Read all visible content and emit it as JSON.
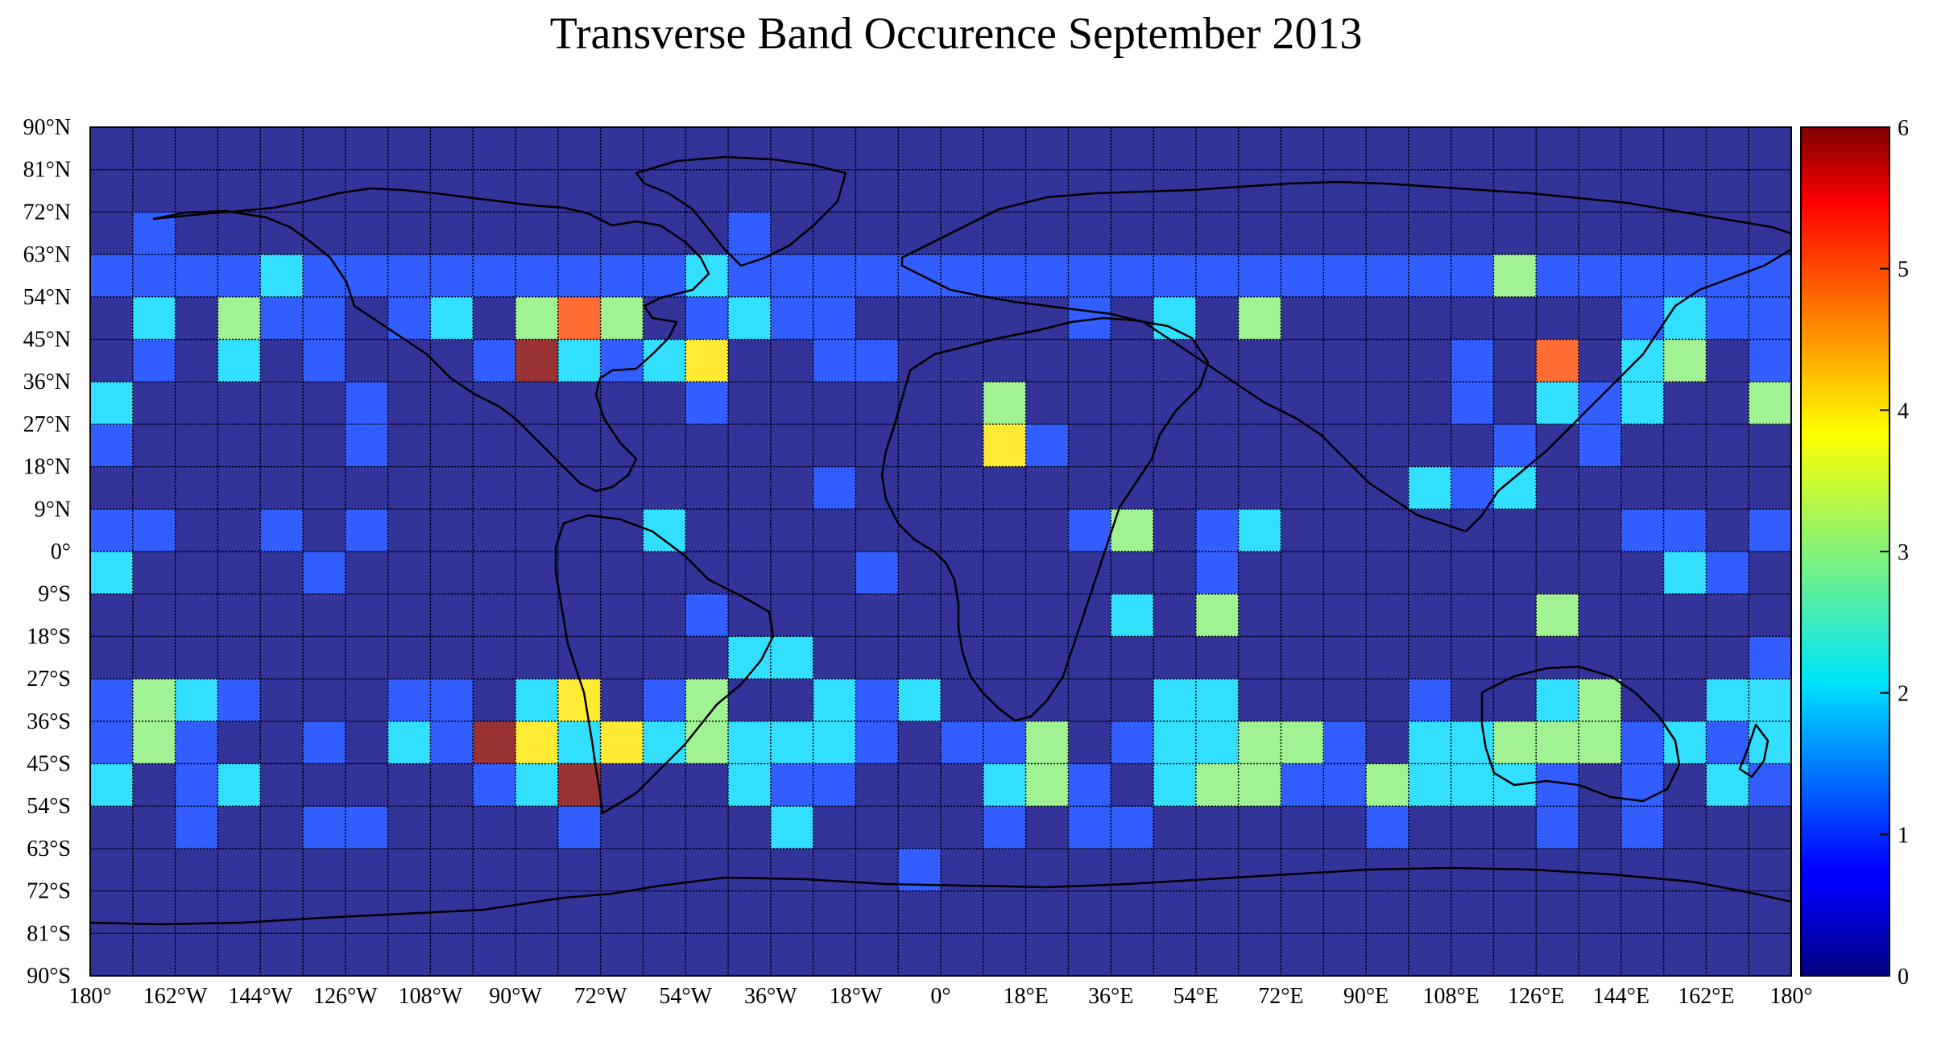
{
  "chart_data": {
    "type": "heatmap",
    "title": "Transverse Band Occurence September 2013",
    "xlabel": "",
    "ylabel": "",
    "x_tick_labels": [
      "180°",
      "162°W",
      "144°W",
      "126°W",
      "108°W",
      "90°W",
      "72°W",
      "54°W",
      "36°W",
      "18°W",
      "0°",
      "18°E",
      "36°E",
      "54°E",
      "72°E",
      "90°E",
      "108°E",
      "126°E",
      "144°E",
      "162°E",
      "180°"
    ],
    "y_tick_labels": [
      "90°N",
      "81°N",
      "72°N",
      "63°N",
      "54°N",
      "45°N",
      "36°N",
      "27°N",
      "18°N",
      "9°N",
      "0°",
      "9°S",
      "18°S",
      "27°S",
      "36°S",
      "45°S",
      "54°S",
      "63°S",
      "72°S",
      "81°S",
      "90°S"
    ],
    "xlim": [
      -180,
      180
    ],
    "ylim": [
      -90,
      90
    ],
    "cell_size_deg": [
      9,
      9
    ],
    "colorbar": {
      "min": 0,
      "max": 6,
      "ticks": [
        "0",
        "1",
        "2",
        "3",
        "4",
        "5",
        "6"
      ],
      "colormap": "jet"
    },
    "grid": true,
    "background_feature": "world coastlines",
    "rows_north_to_south": [
      [
        0,
        0,
        0,
        0,
        0,
        0,
        0,
        0,
        0,
        0,
        0,
        0,
        0,
        0,
        0,
        0,
        0,
        0,
        0,
        0,
        0,
        0,
        0,
        0,
        0,
        0,
        0,
        0,
        0,
        0,
        0,
        0,
        0,
        0,
        0,
        0,
        0,
        0,
        0,
        0
      ],
      [
        0,
        0,
        0,
        0,
        0,
        0,
        0,
        0,
        0,
        0,
        0,
        0,
        0,
        0,
        0,
        0,
        0,
        0,
        0,
        0,
        0,
        0,
        0,
        0,
        0,
        0,
        0,
        0,
        0,
        0,
        0,
        0,
        0,
        0,
        0,
        0,
        0,
        0,
        0,
        0
      ],
      [
        0,
        1,
        0,
        0,
        0,
        0,
        0,
        0,
        0,
        0,
        0,
        0,
        0,
        0,
        0,
        1,
        0,
        0,
        0,
        0,
        0,
        0,
        0,
        0,
        0,
        0,
        0,
        0,
        0,
        0,
        0,
        0,
        0,
        0,
        0,
        0,
        0,
        0,
        0,
        0
      ],
      [
        1,
        1,
        1,
        1,
        2,
        1,
        1,
        1,
        1,
        1,
        1,
        1,
        1,
        1,
        2,
        1,
        1,
        1,
        1,
        1,
        1,
        1,
        1,
        1,
        1,
        1,
        1,
        1,
        1,
        1,
        1,
        1,
        1,
        3,
        1,
        1,
        1,
        1,
        1,
        1
      ],
      [
        0,
        2,
        0,
        3,
        1,
        1,
        0,
        1,
        2,
        0,
        3,
        5,
        3,
        0,
        1,
        2,
        1,
        1,
        0,
        0,
        0,
        0,
        0,
        1,
        0,
        2,
        0,
        3,
        0,
        0,
        0,
        0,
        0,
        0,
        0,
        0,
        1,
        2,
        1,
        1
      ],
      [
        0,
        1,
        0,
        2,
        0,
        1,
        0,
        0,
        0,
        1,
        6,
        2,
        1,
        2,
        4,
        0,
        0,
        1,
        1,
        0,
        0,
        0,
        0,
        0,
        0,
        0,
        0,
        0,
        0,
        0,
        0,
        0,
        1,
        0,
        5,
        0,
        2,
        3,
        0,
        1
      ],
      [
        2,
        0,
        0,
        0,
        0,
        0,
        1,
        0,
        0,
        0,
        0,
        0,
        0,
        0,
        1,
        0,
        0,
        0,
        0,
        0,
        0,
        3,
        0,
        0,
        0,
        0,
        0,
        0,
        0,
        0,
        0,
        0,
        1,
        0,
        2,
        1,
        2,
        0,
        0,
        3
      ],
      [
        1,
        0,
        0,
        0,
        0,
        0,
        1,
        0,
        0,
        0,
        0,
        0,
        0,
        0,
        0,
        0,
        0,
        0,
        0,
        0,
        0,
        4,
        1,
        0,
        0,
        0,
        0,
        0,
        0,
        0,
        0,
        0,
        0,
        1,
        0,
        1,
        0,
        0,
        0,
        0
      ],
      [
        0,
        0,
        0,
        0,
        0,
        0,
        0,
        0,
        0,
        0,
        0,
        0,
        0,
        0,
        0,
        0,
        0,
        1,
        0,
        0,
        0,
        0,
        0,
        0,
        0,
        0,
        0,
        0,
        0,
        0,
        0,
        2,
        1,
        2,
        0,
        0,
        0,
        0,
        0,
        0
      ],
      [
        1,
        1,
        0,
        0,
        1,
        0,
        1,
        0,
        0,
        0,
        0,
        0,
        0,
        2,
        0,
        0,
        0,
        0,
        0,
        0,
        0,
        0,
        0,
        1,
        3,
        0,
        1,
        2,
        0,
        0,
        0,
        0,
        0,
        0,
        0,
        0,
        1,
        1,
        0,
        1
      ],
      [
        2,
        0,
        0,
        0,
        0,
        1,
        0,
        0,
        0,
        0,
        0,
        0,
        0,
        0,
        0,
        0,
        0,
        0,
        1,
        0,
        0,
        0,
        0,
        0,
        0,
        0,
        1,
        0,
        0,
        0,
        0,
        0,
        0,
        0,
        0,
        0,
        0,
        2,
        1,
        0
      ],
      [
        0,
        0,
        0,
        0,
        0,
        0,
        0,
        0,
        0,
        0,
        0,
        0,
        0,
        0,
        1,
        0,
        0,
        0,
        0,
        0,
        0,
        0,
        0,
        0,
        2,
        0,
        3,
        0,
        0,
        0,
        0,
        0,
        0,
        0,
        3,
        0,
        0,
        0,
        0,
        0
      ],
      [
        0,
        0,
        0,
        0,
        0,
        0,
        0,
        0,
        0,
        0,
        0,
        0,
        0,
        0,
        0,
        2,
        2,
        0,
        0,
        0,
        0,
        0,
        0,
        0,
        0,
        0,
        0,
        0,
        0,
        0,
        0,
        0,
        0,
        0,
        0,
        0,
        0,
        0,
        0,
        1
      ],
      [
        1,
        3,
        2,
        1,
        0,
        0,
        0,
        1,
        1,
        0,
        2,
        4,
        0,
        1,
        3,
        0,
        0,
        2,
        1,
        2,
        0,
        0,
        0,
        0,
        0,
        2,
        2,
        0,
        0,
        0,
        0,
        1,
        0,
        0,
        2,
        3,
        0,
        0,
        2,
        2
      ],
      [
        1,
        3,
        1,
        0,
        0,
        1,
        0,
        2,
        1,
        6,
        4,
        2,
        4,
        2,
        3,
        2,
        2,
        2,
        1,
        0,
        1,
        1,
        3,
        0,
        1,
        2,
        2,
        3,
        3,
        1,
        0,
        2,
        2,
        3,
        3,
        3,
        1,
        2,
        1,
        2
      ],
      [
        2,
        0,
        1,
        2,
        0,
        0,
        0,
        0,
        0,
        1,
        2,
        6,
        0,
        0,
        0,
        2,
        1,
        1,
        0,
        0,
        0,
        2,
        3,
        1,
        0,
        2,
        3,
        3,
        1,
        1,
        3,
        2,
        2,
        2,
        1,
        0,
        1,
        0,
        2,
        1
      ],
      [
        0,
        0,
        1,
        0,
        0,
        1,
        1,
        0,
        0,
        0,
        0,
        1,
        0,
        0,
        0,
        0,
        2,
        0,
        0,
        0,
        0,
        1,
        0,
        1,
        1,
        0,
        0,
        0,
        0,
        0,
        1,
        0,
        0,
        0,
        1,
        0,
        1,
        0,
        0,
        0
      ],
      [
        0,
        0,
        0,
        0,
        0,
        0,
        0,
        0,
        0,
        0,
        0,
        0,
        0,
        0,
        0,
        0,
        0,
        0,
        0,
        1,
        0,
        0,
        0,
        0,
        0,
        0,
        0,
        0,
        0,
        0,
        0,
        0,
        0,
        0,
        0,
        0,
        0,
        0,
        0,
        0
      ],
      [
        0,
        0,
        0,
        0,
        0,
        0,
        0,
        0,
        0,
        0,
        0,
        0,
        0,
        0,
        0,
        0,
        0,
        0,
        0,
        0,
        0,
        0,
        0,
        0,
        0,
        0,
        0,
        0,
        0,
        0,
        0,
        0,
        0,
        0,
        0,
        0,
        0,
        0,
        0,
        0
      ],
      [
        0,
        0,
        0,
        0,
        0,
        0,
        0,
        0,
        0,
        0,
        0,
        0,
        0,
        0,
        0,
        0,
        0,
        0,
        0,
        0,
        0,
        0,
        0,
        0,
        0,
        0,
        0,
        0,
        0,
        0,
        0,
        0,
        0,
        0,
        0,
        0,
        0,
        0,
        0,
        0
      ]
    ]
  }
}
